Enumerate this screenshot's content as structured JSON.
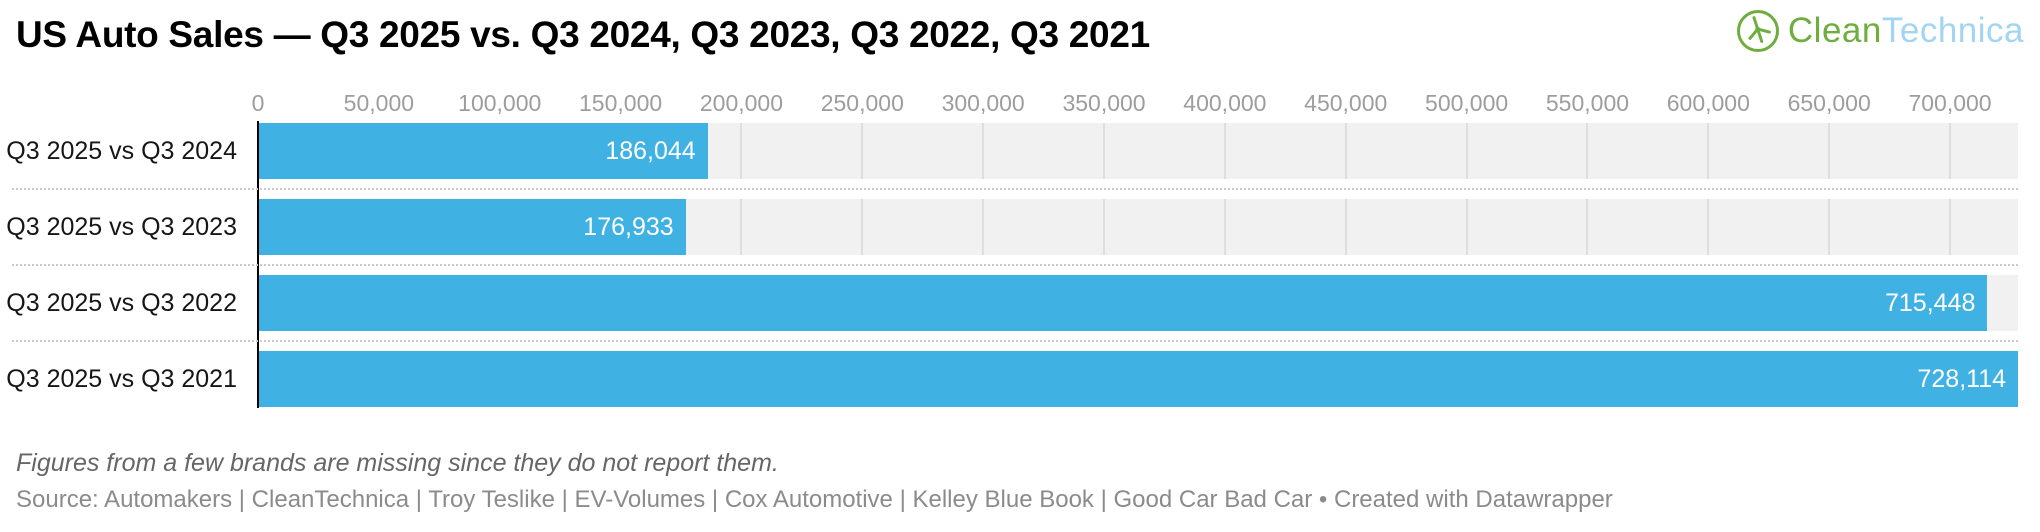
{
  "header": {
    "title": "US Auto Sales — Q3 2025 vs. Q3 2024, Q3 2023, Q3 2022, Q3 2021",
    "logo": {
      "icon": "wind-turbine-circle-icon",
      "part1": "Clean",
      "part2": "Technica",
      "green": "#6fae3e",
      "blue": "#a3d5f2"
    }
  },
  "chart_data": {
    "type": "bar",
    "orientation": "horizontal",
    "title": "US Auto Sales — Q3 2025 vs. Q3 2024, Q3 2023, Q3 2022, Q3 2021",
    "categories": [
      "Q3 2025 vs Q3 2024",
      "Q3 2025 vs Q3 2023",
      "Q3 2025 vs Q3 2022",
      "Q3 2025 vs Q3 2021"
    ],
    "values": [
      186044,
      176933,
      715448,
      728114
    ],
    "value_labels": [
      "186,044",
      "176,933",
      "715,448",
      "728,114"
    ],
    "xlabel": "",
    "ylabel": "",
    "axis": {
      "min": 0,
      "max": 728114,
      "ticks": [
        0,
        50000,
        100000,
        150000,
        200000,
        250000,
        300000,
        350000,
        400000,
        450000,
        500000,
        550000,
        600000,
        650000,
        700000
      ],
      "tick_labels": [
        "0",
        "50,000",
        "100,000",
        "150,000",
        "200,000",
        "250,000",
        "300,000",
        "350,000",
        "400,000",
        "450,000",
        "500,000",
        "550,000",
        "600,000",
        "650,000",
        "700,000"
      ]
    },
    "grid": "vertical gridlines at 50,000 steps inside gray row bands",
    "legend": "none",
    "value_labels_position": "inside bar end, white"
  },
  "footer": {
    "note": "Figures from a few brands are missing since they do not report them.",
    "source": "Source: Automakers | CleanTechnica | Troy Teslike | EV-Volumes | Cox Automotive | Kelley Blue Book | Good Car Bad Car • Created with Datawrapper"
  },
  "colors": {
    "bar": "#3fb2e3",
    "band": "#f1f1f1",
    "gridline": "#dedede",
    "separator": "#c9c9c9",
    "tick_label": "#9d9d9d",
    "title": "#000000",
    "row_label": "#161616",
    "value_label": "#ffffff",
    "note": "#666666",
    "source": "#8b8b8b",
    "zero_axis": "#000000"
  }
}
